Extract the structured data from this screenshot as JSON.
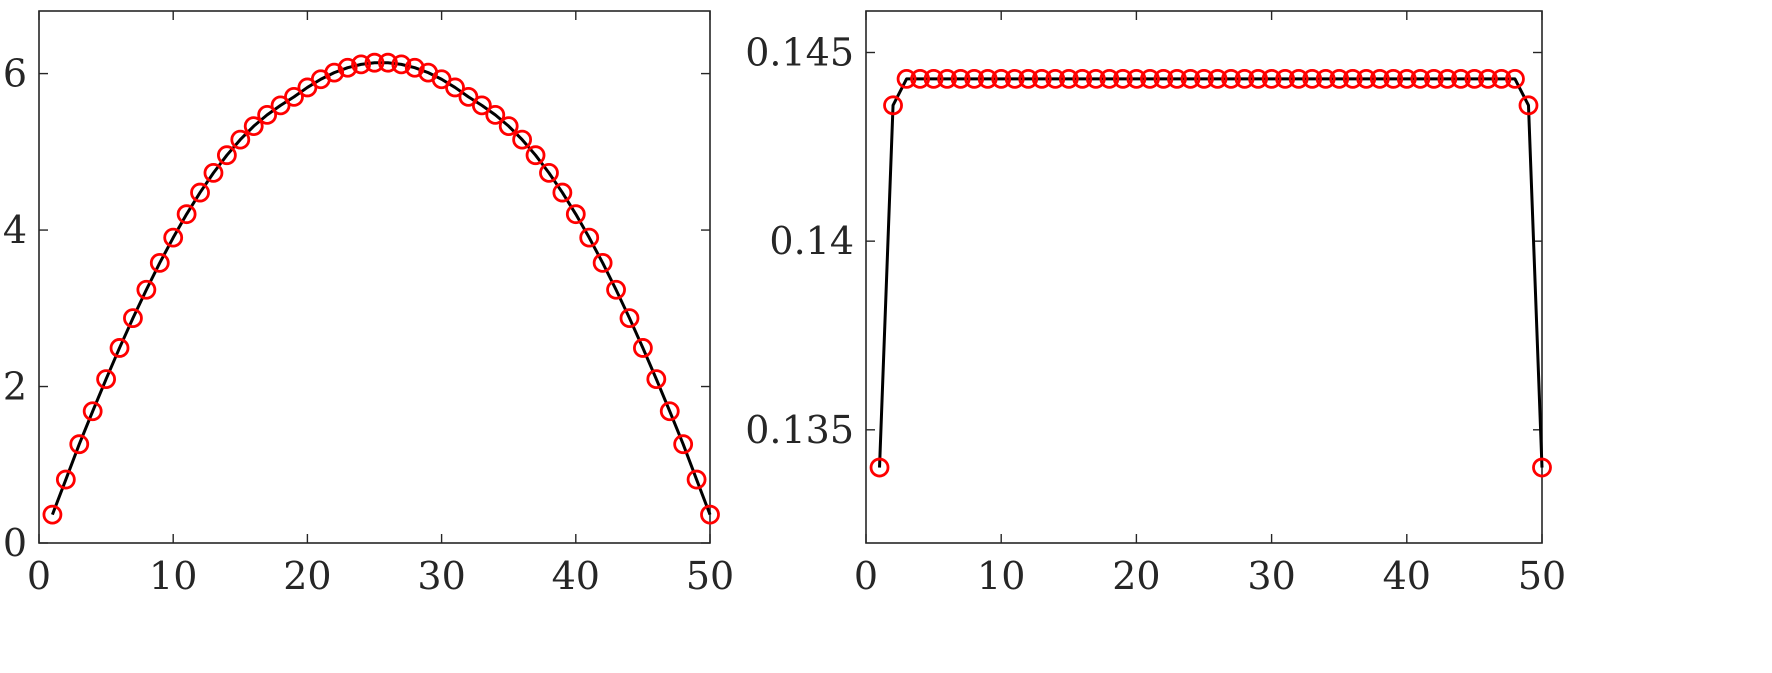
{
  "chart_data": [
    {
      "type": "line",
      "title": "",
      "xlabel": "",
      "ylabel": "",
      "xlim": [
        0,
        50
      ],
      "ylim": [
        0,
        6.8
      ],
      "xticks": [
        0,
        10,
        20,
        30,
        40,
        50
      ],
      "yticks": [
        0,
        2,
        4,
        6
      ],
      "xtick_labels": [
        "0",
        "10",
        "20",
        "30",
        "40",
        "50"
      ],
      "ytick_labels": [
        "0",
        "2",
        "4",
        "6"
      ],
      "grid": false,
      "colors": {
        "line": "#000000",
        "marker": "#ff0000"
      },
      "series": [
        {
          "x": [
            1,
            2,
            3,
            4,
            5,
            6,
            7,
            8,
            9,
            10,
            11,
            12,
            13,
            14,
            15,
            16,
            17,
            18,
            19,
            20,
            21,
            22,
            23,
            24,
            25,
            26,
            27,
            28,
            29,
            30,
            31,
            32,
            33,
            34,
            35,
            36,
            37,
            38,
            39,
            40,
            41,
            42,
            43,
            44,
            45,
            46,
            47,
            48,
            49,
            50
          ],
          "y": [
            0.363,
            0.811,
            1.263,
            1.684,
            2.095,
            2.493,
            2.874,
            3.237,
            3.581,
            3.903,
            4.203,
            4.479,
            4.731,
            4.957,
            5.156,
            5.328,
            5.472,
            5.594,
            5.702,
            5.823,
            5.928,
            6.012,
            6.075,
            6.118,
            6.139,
            6.139,
            6.118,
            6.075,
            6.012,
            5.928,
            5.823,
            5.702,
            5.594,
            5.472,
            5.328,
            5.156,
            4.957,
            4.731,
            4.479,
            4.203,
            3.903,
            3.581,
            3.237,
            2.874,
            2.493,
            2.095,
            1.684,
            1.263,
            0.811,
            0.363
          ]
        }
      ]
    },
    {
      "type": "line",
      "title": "",
      "xlabel": "",
      "ylabel": "",
      "xlim": [
        0,
        50
      ],
      "ylim": [
        0.132,
        0.1461
      ],
      "xticks": [
        0,
        10,
        20,
        30,
        40,
        50
      ],
      "yticks": [
        0.135,
        0.14,
        0.145
      ],
      "xtick_labels": [
        "0",
        "10",
        "20",
        "30",
        "40",
        "50"
      ],
      "ytick_labels": [
        "0.135",
        "0.14",
        "0.145"
      ],
      "grid": false,
      "colors": {
        "line": "#000000",
        "marker": "#ff0000"
      },
      "series": [
        {
          "x": [
            1,
            2,
            3,
            4,
            5,
            6,
            7,
            8,
            9,
            10,
            11,
            12,
            13,
            14,
            15,
            16,
            17,
            18,
            19,
            20,
            21,
            22,
            23,
            24,
            25,
            26,
            27,
            28,
            29,
            30,
            31,
            32,
            33,
            34,
            35,
            36,
            37,
            38,
            39,
            40,
            41,
            42,
            43,
            44,
            45,
            46,
            47,
            48,
            49,
            50
          ],
          "y": [
            0.134,
            0.1436,
            0.1443,
            0.1443,
            0.1443,
            0.1443,
            0.1443,
            0.1443,
            0.1443,
            0.1443,
            0.1443,
            0.1443,
            0.1443,
            0.1443,
            0.1443,
            0.1443,
            0.1443,
            0.1443,
            0.1443,
            0.1443,
            0.1443,
            0.1443,
            0.1443,
            0.1443,
            0.1443,
            0.1443,
            0.1443,
            0.1443,
            0.1443,
            0.1443,
            0.1443,
            0.1443,
            0.1443,
            0.1443,
            0.1443,
            0.1443,
            0.1443,
            0.1443,
            0.1443,
            0.1443,
            0.1443,
            0.1443,
            0.1443,
            0.1443,
            0.1443,
            0.1443,
            0.1443,
            0.1443,
            0.1436,
            0.134
          ]
        }
      ]
    }
  ]
}
